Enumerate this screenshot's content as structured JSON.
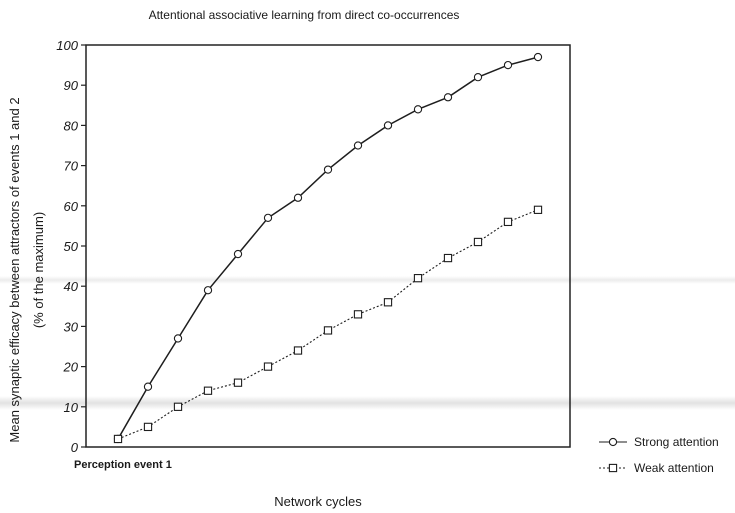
{
  "chart_data": {
    "type": "line",
    "title": "Attentional associative learning from direct co-occurrences",
    "xlabel": "Network cycles",
    "ylabel_line1": "Mean synaptic efficacy between attractors of events 1 and 2",
    "ylabel_line2": "(% of the maximum)",
    "x_start_label": "Perception event 1",
    "ylim": [
      0,
      100
    ],
    "yticks": [
      0,
      10,
      20,
      30,
      40,
      50,
      60,
      70,
      80,
      90,
      100
    ],
    "x": [
      1,
      2,
      3,
      4,
      5,
      6,
      7,
      8,
      9,
      10,
      11,
      12,
      13,
      14,
      15
    ],
    "grid": false,
    "legend_position": "bottom-right",
    "series": [
      {
        "name": "Strong attention",
        "marker": "circle",
        "line_style": "solid",
        "values": [
          2,
          15,
          27,
          39,
          48,
          57,
          62,
          69,
          75,
          80,
          84,
          87,
          92,
          95,
          97
        ]
      },
      {
        "name": "Weak attention",
        "marker": "square",
        "line_style": "dotted",
        "values": [
          2,
          5,
          10,
          14,
          16,
          20,
          24,
          29,
          33,
          36,
          42,
          47,
          51,
          56,
          59
        ]
      }
    ]
  }
}
